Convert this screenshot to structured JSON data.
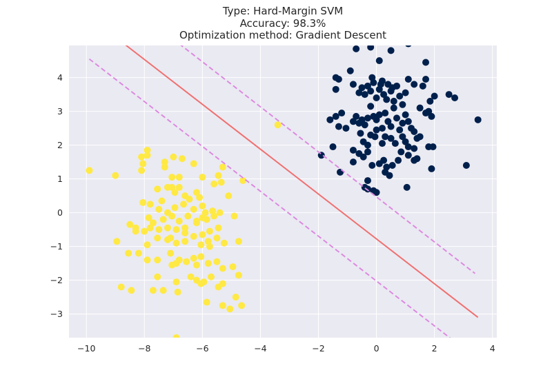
{
  "chart_data": {
    "type": "scatter",
    "title_lines": [
      "Type: Hard-Margin SVM",
      "Accuracy: 98.3%",
      "Optimization method: Gradient Descent"
    ],
    "xlabel": "",
    "ylabel": "",
    "xlim": [
      -10.6,
      4.15
    ],
    "ylim": [
      -3.7,
      4.95
    ],
    "x_ticks": [
      -10,
      -8,
      -6,
      -4,
      -2,
      0,
      2,
      4
    ],
    "y_ticks": [
      -3,
      -2,
      -1,
      0,
      1,
      2,
      3,
      4
    ],
    "x_tick_labels": [
      "−10",
      "−8",
      "−6",
      "−4",
      "−2",
      "0",
      "2",
      "4"
    ],
    "y_tick_labels": [
      "−3",
      "−2",
      "−1",
      "0",
      "1",
      "2",
      "3",
      "4"
    ],
    "grid": true,
    "colors": {
      "background": "#eaeaf2",
      "grid": "#ffffff",
      "class_positive": "#00204c",
      "class_negative": "#ffe945",
      "decision_boundary": "#f07070",
      "margin": "#dc8ae0"
    },
    "lines": [
      {
        "role": "decision-boundary",
        "style": "solid",
        "x": [
          -8.7,
          3.5
        ],
        "y": [
          5.0,
          -3.1
        ]
      },
      {
        "role": "margin-upper",
        "style": "dashed",
        "x": [
          -6.8,
          3.4
        ],
        "y": [
          5.0,
          -1.8
        ]
      },
      {
        "role": "margin-lower",
        "style": "dashed",
        "x": [
          -9.9,
          2.6
        ],
        "y": [
          4.55,
          -3.75
        ]
      }
    ],
    "series": [
      {
        "class": "positive",
        "color": "#00204c",
        "points": [
          [
            -0.7,
            4.85
          ],
          [
            -0.2,
            4.9
          ],
          [
            0.5,
            4.8
          ],
          [
            1.1,
            5.0
          ],
          [
            0.1,
            4.5
          ],
          [
            1.7,
            4.45
          ],
          [
            -1.4,
            4.0
          ],
          [
            -1.3,
            3.95
          ],
          [
            -0.9,
            4.2
          ],
          [
            -0.8,
            3.8
          ],
          [
            -0.6,
            3.55
          ],
          [
            -0.5,
            3.7
          ],
          [
            -0.4,
            3.5
          ],
          [
            -0.3,
            3.75
          ],
          [
            -0.2,
            3.6
          ],
          [
            -0.15,
            4.0
          ],
          [
            -0.1,
            3.85
          ],
          [
            0.0,
            3.4
          ],
          [
            0.1,
            3.65
          ],
          [
            0.2,
            3.9
          ],
          [
            0.25,
            3.5
          ],
          [
            0.4,
            3.8
          ],
          [
            0.5,
            3.6
          ],
          [
            0.6,
            3.3
          ],
          [
            0.7,
            3.75
          ],
          [
            0.8,
            3.45
          ],
          [
            0.9,
            3.2
          ],
          [
            1.0,
            3.55
          ],
          [
            1.1,
            3.95
          ],
          [
            1.3,
            3.8
          ],
          [
            1.6,
            3.75
          ],
          [
            1.7,
            3.95
          ],
          [
            -1.4,
            3.65
          ],
          [
            0.55,
            3.7
          ],
          [
            0.15,
            3.8
          ],
          [
            0.35,
            3.35
          ],
          [
            1.85,
            3.3
          ],
          [
            2.0,
            3.45
          ],
          [
            2.5,
            3.5
          ],
          [
            2.7,
            3.4
          ],
          [
            1.5,
            3.1
          ],
          [
            1.8,
            3.0
          ],
          [
            1.9,
            2.85
          ],
          [
            1.7,
            2.95
          ],
          [
            -1.4,
            2.85
          ],
          [
            -1.6,
            2.75
          ],
          [
            -1.3,
            2.55
          ],
          [
            -1.2,
            2.95
          ],
          [
            -1.05,
            2.5
          ],
          [
            -0.8,
            2.7
          ],
          [
            -0.7,
            2.85
          ],
          [
            -0.6,
            2.65
          ],
          [
            -0.5,
            2.75
          ],
          [
            -0.4,
            2.6
          ],
          [
            -0.3,
            2.8
          ],
          [
            -0.2,
            3.15
          ],
          [
            -0.1,
            2.85
          ],
          [
            0.0,
            2.75
          ],
          [
            0.1,
            2.9
          ],
          [
            0.2,
            2.5
          ],
          [
            0.3,
            2.95
          ],
          [
            0.4,
            2.7
          ],
          [
            0.5,
            2.55
          ],
          [
            0.6,
            3.1
          ],
          [
            0.7,
            2.8
          ],
          [
            0.8,
            2.45
          ],
          [
            0.9,
            2.65
          ],
          [
            1.0,
            2.9
          ],
          [
            1.1,
            2.7
          ],
          [
            1.2,
            2.5
          ],
          [
            1.3,
            2.4
          ],
          [
            1.4,
            2.2
          ],
          [
            0.2,
            2.05
          ],
          [
            0.5,
            2.2
          ],
          [
            0.65,
            2.05
          ],
          [
            0.9,
            2.25
          ],
          [
            1.0,
            2.1
          ],
          [
            1.1,
            1.95
          ],
          [
            1.3,
            1.9
          ],
          [
            -0.3,
            2.0
          ],
          [
            -0.45,
            2.1
          ],
          [
            -0.55,
            2.35
          ],
          [
            -0.2,
            2.3
          ],
          [
            0.0,
            2.45
          ],
          [
            0.3,
            2.25
          ],
          [
            -1.5,
            1.95
          ],
          [
            -1.9,
            1.7
          ],
          [
            -0.8,
            1.85
          ],
          [
            -0.6,
            1.75
          ],
          [
            -0.3,
            1.8
          ],
          [
            -0.8,
            1.5
          ],
          [
            -0.45,
            1.65
          ],
          [
            -0.15,
            1.4
          ],
          [
            0.1,
            1.45
          ],
          [
            0.25,
            1.55
          ],
          [
            0.35,
            1.35
          ],
          [
            0.45,
            1.1
          ],
          [
            0.55,
            1.4
          ],
          [
            0.75,
            1.55
          ],
          [
            1.1,
            1.7
          ],
          [
            1.3,
            1.55
          ],
          [
            1.4,
            1.6
          ],
          [
            1.8,
            1.95
          ],
          [
            1.95,
            1.95
          ],
          [
            1.9,
            1.3
          ],
          [
            -1.25,
            1.2
          ],
          [
            0.3,
            1.2
          ],
          [
            3.1,
            1.4
          ],
          [
            3.5,
            2.75
          ],
          [
            -0.3,
            0.95
          ],
          [
            -0.4,
            0.75
          ],
          [
            -0.3,
            0.7
          ],
          [
            -0.1,
            0.65
          ],
          [
            0.0,
            0.6
          ],
          [
            1.05,
            0.75
          ],
          [
            -0.05,
            2.25
          ],
          [
            1.5,
            2.25
          ],
          [
            0.85,
            1.8
          ]
        ]
      },
      {
        "class": "negative",
        "color": "#ffe945",
        "points": [
          [
            -3.4,
            2.6
          ],
          [
            -9.9,
            1.25
          ],
          [
            -9.0,
            1.1
          ],
          [
            -7.9,
            1.85
          ],
          [
            -8.1,
            1.65
          ],
          [
            -7.9,
            1.7
          ],
          [
            -7.0,
            1.65
          ],
          [
            -6.7,
            1.6
          ],
          [
            -7.3,
            1.5
          ],
          [
            -7.3,
            1.35
          ],
          [
            -6.3,
            1.45
          ],
          [
            -7.05,
            1.05
          ],
          [
            -8.05,
            1.45
          ],
          [
            -8.1,
            1.25
          ],
          [
            -6.8,
            1.05
          ],
          [
            -6.0,
            1.05
          ],
          [
            -5.45,
            1.1
          ],
          [
            -5.3,
            1.35
          ],
          [
            -4.6,
            0.95
          ],
          [
            -5.6,
            0.85
          ],
          [
            -5.35,
            0.9
          ],
          [
            -7.05,
            0.75
          ],
          [
            -7.2,
            0.75
          ],
          [
            -7.55,
            0.7
          ],
          [
            -6.8,
            0.75
          ],
          [
            -6.2,
            0.6
          ],
          [
            -5.1,
            0.5
          ],
          [
            -6.95,
            0.6
          ],
          [
            -6.6,
            0.5
          ],
          [
            -6.45,
            0.4
          ],
          [
            -6.1,
            0.45
          ],
          [
            -7.4,
            0.35
          ],
          [
            -8.05,
            0.3
          ],
          [
            -7.8,
            0.25
          ],
          [
            -7.5,
            0.1
          ],
          [
            -7.2,
            0.0
          ],
          [
            -6.95,
            0.15
          ],
          [
            -6.65,
            0.25
          ],
          [
            -6.3,
            0.1
          ],
          [
            -6.0,
            0.2
          ],
          [
            -5.9,
            0.0
          ],
          [
            -5.65,
            0.05
          ],
          [
            -5.4,
            0.0
          ],
          [
            -4.9,
            -0.1
          ],
          [
            -7.85,
            -0.15
          ],
          [
            -7.7,
            -0.3
          ],
          [
            -7.35,
            -0.2
          ],
          [
            -7.05,
            -0.1
          ],
          [
            -6.8,
            -0.25
          ],
          [
            -6.5,
            -0.1
          ],
          [
            -6.2,
            -0.25
          ],
          [
            -5.85,
            -0.2
          ],
          [
            -5.6,
            -0.1
          ],
          [
            -8.5,
            -0.35
          ],
          [
            -8.3,
            -0.45
          ],
          [
            -8.0,
            -0.55
          ],
          [
            -7.8,
            -0.45
          ],
          [
            -7.5,
            -0.5
          ],
          [
            -7.2,
            -0.45
          ],
          [
            -6.9,
            -0.5
          ],
          [
            -6.6,
            -0.6
          ],
          [
            -6.3,
            -0.7
          ],
          [
            -6.0,
            -0.65
          ],
          [
            -5.75,
            -0.55
          ],
          [
            -5.45,
            -0.45
          ],
          [
            -8.95,
            -0.85
          ],
          [
            -7.9,
            -0.95
          ],
          [
            -7.55,
            -0.75
          ],
          [
            -7.2,
            -0.8
          ],
          [
            -6.9,
            -0.9
          ],
          [
            -6.6,
            -0.85
          ],
          [
            -6.05,
            -0.95
          ],
          [
            -5.8,
            -0.85
          ],
          [
            -5.5,
            -0.75
          ],
          [
            -5.25,
            -0.9
          ],
          [
            -4.75,
            -0.85
          ],
          [
            -8.55,
            -1.2
          ],
          [
            -8.2,
            -1.2
          ],
          [
            -7.9,
            -1.4
          ],
          [
            -7.55,
            -1.4
          ],
          [
            -7.1,
            -1.2
          ],
          [
            -6.8,
            -1.4
          ],
          [
            -6.55,
            -1.45
          ],
          [
            -6.3,
            -1.35
          ],
          [
            -6.05,
            -1.3
          ],
          [
            -5.8,
            -1.5
          ],
          [
            -5.5,
            -1.45
          ],
          [
            -5.3,
            -1.65
          ],
          [
            -4.95,
            -1.6
          ],
          [
            -6.9,
            -1.5
          ],
          [
            -7.05,
            -1.55
          ],
          [
            -6.2,
            -1.55
          ],
          [
            -7.55,
            -1.9
          ],
          [
            -6.9,
            -2.05
          ],
          [
            -6.4,
            -1.9
          ],
          [
            -6.2,
            -2.0
          ],
          [
            -5.95,
            -2.05
          ],
          [
            -5.7,
            -1.9
          ],
          [
            -5.45,
            -2.2
          ],
          [
            -5.3,
            -2.1
          ],
          [
            -4.75,
            -1.85
          ],
          [
            -8.8,
            -2.2
          ],
          [
            -8.45,
            -2.3
          ],
          [
            -7.7,
            -2.3
          ],
          [
            -7.35,
            -2.3
          ],
          [
            -6.85,
            -2.35
          ],
          [
            -6.05,
            -2.1
          ],
          [
            -5.85,
            -2.65
          ],
          [
            -5.3,
            -2.75
          ],
          [
            -5.05,
            -2.85
          ],
          [
            -4.85,
            -2.5
          ],
          [
            -4.65,
            -2.75
          ],
          [
            -6.9,
            -3.7
          ],
          [
            -6.6,
            -0.45
          ],
          [
            -5.75,
            -1.0
          ],
          [
            -6.2,
            -0.3
          ],
          [
            -7.1,
            -0.75
          ],
          [
            -8.3,
            -0.55
          ],
          [
            -6.0,
            -0.15
          ]
        ]
      }
    ]
  }
}
